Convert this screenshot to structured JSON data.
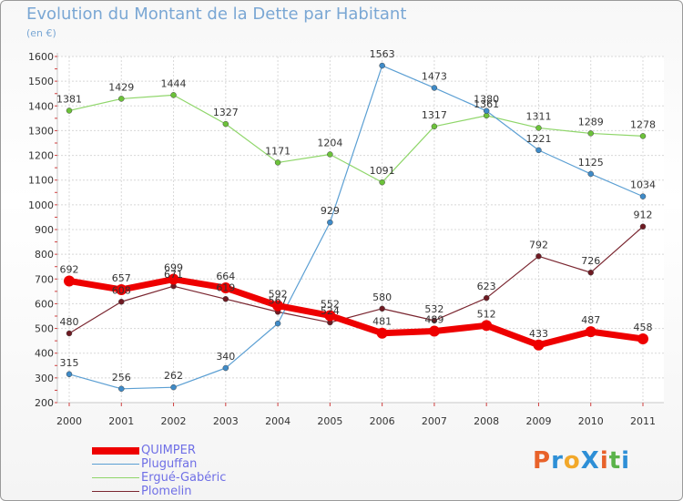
{
  "title": "Evolution du Montant de la Dette par Habitant",
  "subtitle": "(en €)",
  "logo": {
    "text": "ProXiti",
    "colors": [
      "#e8622a",
      "#2e8fd6",
      "#f2a82a",
      "#2e8fd6",
      "#e8622a",
      "#5bb34a",
      "#2e8fd6"
    ]
  },
  "chart_data": {
    "type": "line",
    "x": [
      "2000",
      "2001",
      "2002",
      "2003",
      "2004",
      "2005",
      "2006",
      "2007",
      "2008",
      "2009",
      "2010",
      "2011"
    ],
    "ylim": [
      200,
      1600
    ],
    "yticks": [
      200,
      300,
      400,
      500,
      600,
      700,
      800,
      900,
      1000,
      1100,
      1200,
      1300,
      1400,
      1500,
      1600
    ],
    "grid": true,
    "legend_position": "bottom",
    "series": [
      {
        "name": "Ergué-Gabéric",
        "color": "#8fd66a",
        "marker": "#6cc23a",
        "width": 1.2,
        "values": [
          1381,
          1429,
          1444,
          1327,
          1171,
          1204,
          1091,
          1317,
          1361,
          1311,
          1289,
          1278
        ]
      },
      {
        "name": "Plomelin",
        "color": "#7a2630",
        "marker": "#6e1a22",
        "width": 1.2,
        "values": [
          480,
          608,
          671,
          619,
          567,
          524,
          580,
          532,
          623,
          792,
          726,
          912
        ]
      },
      {
        "name": "Pluguffan",
        "color": "#5b9fd3",
        "marker": "#3f8bc8",
        "width": 1.2,
        "values": [
          315,
          256,
          262,
          340,
          520,
          929,
          1563,
          1473,
          1380,
          1221,
          1125,
          1034
        ]
      },
      {
        "name": "QUIMPER",
        "color": "#ee0000",
        "marker": "#ee0000",
        "width": 7,
        "values": [
          692,
          657,
          699,
          664,
          592,
          552,
          481,
          489,
          512,
          433,
          487,
          458
        ]
      }
    ],
    "labels": [
      [
        1381,
        1429,
        1444,
        1327,
        1171,
        1204,
        1091,
        1317,
        1361,
        1311,
        1289,
        1278
      ],
      [
        480,
        608,
        671,
        619,
        567,
        524,
        580,
        532,
        623,
        792,
        726,
        912
      ],
      [
        315,
        256,
        262,
        340,
        null,
        929,
        1563,
        1473,
        1380,
        1221,
        1125,
        1034
      ],
      [
        692,
        657,
        699,
        664,
        592,
        552,
        481,
        489,
        512,
        433,
        487,
        458
      ]
    ],
    "legend_order": [
      "QUIMPER",
      "Pluguffan",
      "Ergué-Gabéric",
      "Plomelin"
    ]
  }
}
